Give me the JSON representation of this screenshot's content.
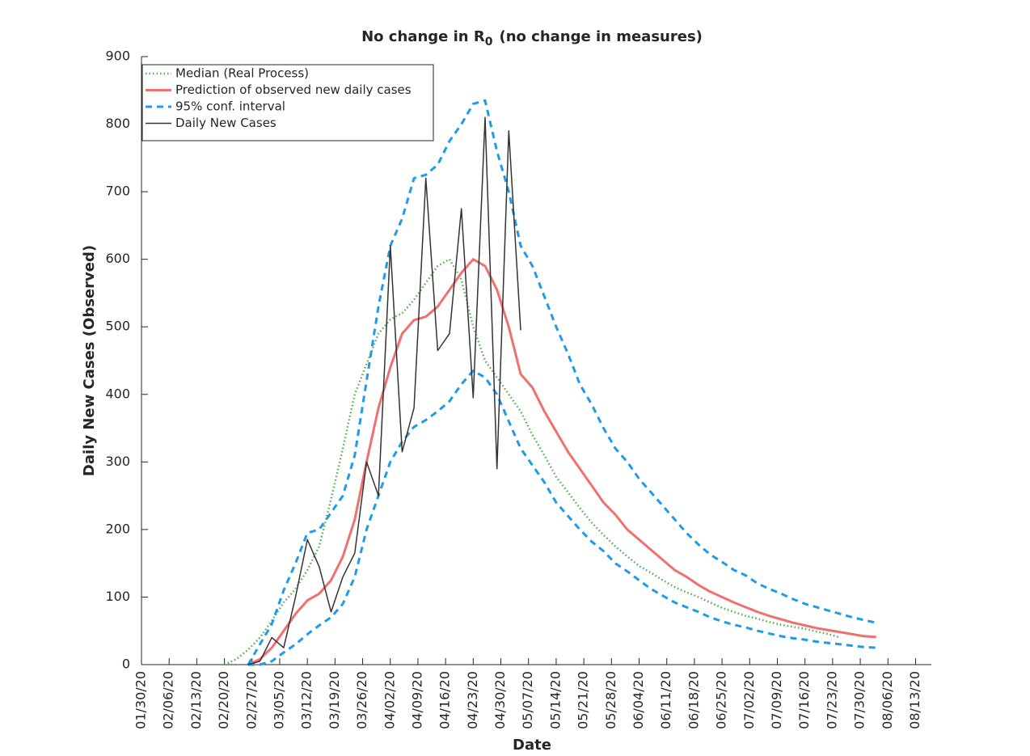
{
  "chart_data": {
    "type": "line",
    "title": [
      "No change in R",
      "0",
      "(no change in measures)"
    ],
    "xlabel": "Date",
    "ylabel": "Daily New Cases (Observed)",
    "x": [
      "02/20/20",
      "02/23/20",
      "02/26/20",
      "02/29/20",
      "03/03/20",
      "03/06/20",
      "03/09/20",
      "03/12/20",
      "03/15/20",
      "03/18/20",
      "03/21/20",
      "03/24/20",
      "03/27/20",
      "03/30/20",
      "04/02/20",
      "04/05/20",
      "04/08/20",
      "04/11/20",
      "04/14/20",
      "04/17/20",
      "04/20/20",
      "04/23/20",
      "04/26/20",
      "04/29/20",
      "05/02/20",
      "05/05/20",
      "05/08/20",
      "05/11/20",
      "05/14/20",
      "05/17/20",
      "05/20/20",
      "05/23/20",
      "05/26/20",
      "05/29/20",
      "06/01/20",
      "06/04/20",
      "06/07/20",
      "06/10/20",
      "06/13/20",
      "06/16/20",
      "06/19/20",
      "06/22/20",
      "06/25/20",
      "06/28/20",
      "07/01/20",
      "07/04/20",
      "07/07/20",
      "07/10/20",
      "07/13/20",
      "07/16/20",
      "07/19/20",
      "07/22/20",
      "07/25/20",
      "07/28/20",
      "07/31/20",
      "08/03/20"
    ],
    "series": [
      {
        "name": "Median (Real Process)",
        "color": "#4daf4a",
        "style": "dotted",
        "values": [
          0,
          8,
          22,
          40,
          65,
          92,
          112,
          140,
          175,
          245,
          320,
          400,
          445,
          490,
          511,
          520,
          540,
          565,
          590,
          600,
          570,
          500,
          450,
          425,
          400,
          375,
          340,
          310,
          278,
          255,
          232,
          210,
          192,
          175,
          160,
          146,
          136,
          125,
          115,
          107,
          100,
          92,
          84,
          78,
          72,
          68,
          63,
          59,
          56,
          53,
          49,
          45,
          40,
          null,
          null,
          null
        ]
      },
      {
        "name": "Prediction of observed new daily cases",
        "color": "#f07070",
        "style": "solid",
        "values": [
          null,
          null,
          0,
          8,
          25,
          50,
          75,
          95,
          105,
          125,
          160,
          215,
          300,
          380,
          440,
          490,
          510,
          515,
          530,
          555,
          580,
          600,
          590,
          555,
          500,
          430,
          410,
          375,
          345,
          315,
          290,
          265,
          240,
          222,
          200,
          185,
          170,
          155,
          140,
          130,
          118,
          108,
          100,
          92,
          85,
          78,
          72,
          67,
          62,
          58,
          54,
          51,
          48,
          45,
          42,
          41
        ]
      },
      {
        "name": "95% conf. interval",
        "color": "#1f9be8",
        "style": "dashed",
        "values": [
          null,
          null,
          0,
          30,
          60,
          110,
          150,
          195,
          200,
          225,
          250,
          310,
          420,
          530,
          620,
          660,
          720,
          725,
          740,
          775,
          800,
          830,
          835,
          760,
          700,
          620,
          590,
          545,
          500,
          460,
          415,
          385,
          350,
          320,
          300,
          275,
          255,
          235,
          215,
          195,
          178,
          163,
          152,
          140,
          132,
          120,
          112,
          105,
          97,
          90,
          85,
          80,
          75,
          70,
          66,
          62
        ],
        "lower": [
          null,
          null,
          0,
          0,
          5,
          18,
          30,
          45,
          58,
          70,
          90,
          130,
          200,
          250,
          300,
          330,
          352,
          362,
          375,
          390,
          415,
          435,
          425,
          400,
          360,
          320,
          295,
          270,
          240,
          220,
          200,
          182,
          168,
          150,
          138,
          125,
          112,
          102,
          92,
          85,
          78,
          70,
          64,
          59,
          55,
          50,
          46,
          42,
          39,
          37,
          34,
          32,
          30,
          28,
          26,
          25
        ]
      },
      {
        "name": "Daily New Cases",
        "color": "#333333",
        "style": "thin",
        "values": [
          null,
          null,
          0,
          5,
          40,
          25,
          100,
          185,
          145,
          78,
          130,
          165,
          300,
          250,
          620,
          315,
          380,
          720,
          465,
          490,
          675,
          395,
          810,
          290,
          790,
          495,
          null,
          null,
          null,
          null,
          null,
          null,
          null,
          null,
          null,
          null,
          null,
          null,
          null,
          null,
          null,
          null,
          null,
          null,
          null,
          null,
          null,
          null,
          null,
          null,
          null,
          null,
          null,
          null,
          null,
          null
        ]
      }
    ],
    "xlim": [
      "01/30/20",
      "08/17/20"
    ],
    "xticks": [
      "01/30/20",
      "02/06/20",
      "02/13/20",
      "02/20/20",
      "02/27/20",
      "03/05/20",
      "03/12/20",
      "03/19/20",
      "03/26/20",
      "04/02/20",
      "04/09/20",
      "04/16/20",
      "04/23/20",
      "04/30/20",
      "05/07/20",
      "05/14/20",
      "05/21/20",
      "05/28/20",
      "06/04/20",
      "06/11/20",
      "06/18/20",
      "06/25/20",
      "07/02/20",
      "07/09/20",
      "07/16/20",
      "07/23/20",
      "07/30/20",
      "08/06/20",
      "08/13/20"
    ],
    "ylim": [
      0,
      900
    ],
    "yticks": [
      0,
      100,
      200,
      300,
      400,
      500,
      600,
      700,
      800,
      900
    ],
    "grid": false,
    "legend": "upper-left"
  }
}
